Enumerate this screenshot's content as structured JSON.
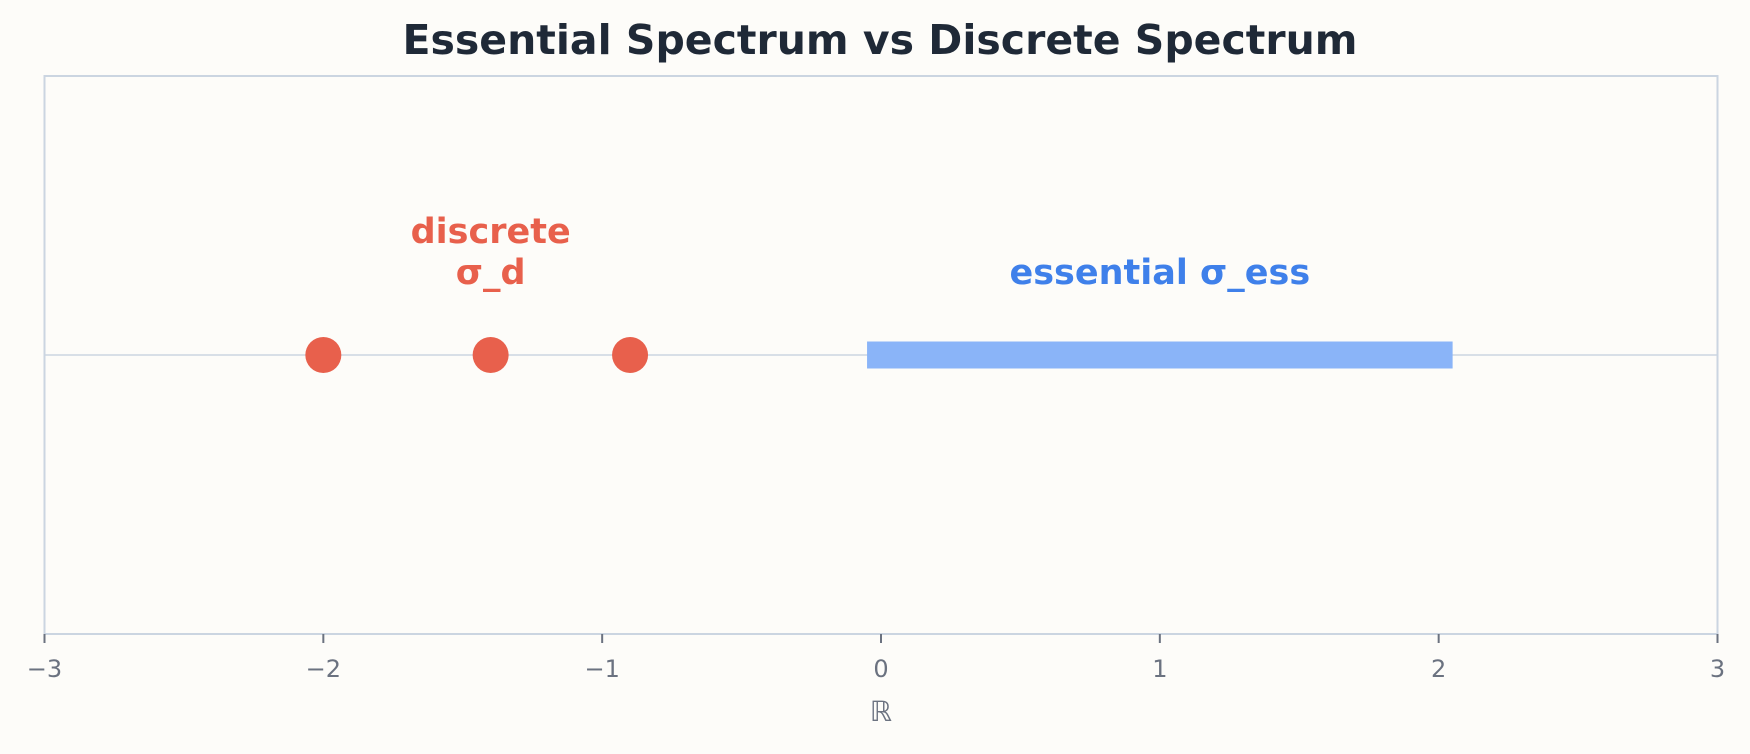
{
  "chart_data": {
    "type": "spectrum",
    "title": "Essential Spectrum vs Discrete Spectrum",
    "x_label": "ℝ",
    "discrete": {
      "label": [
        "discrete",
        "σ_d"
      ],
      "color": "#e8604c",
      "values": [
        -2,
        -1.4,
        -0.9
      ]
    },
    "essential": {
      "label": "essential σ_ess",
      "color": "#8ab4f8",
      "label_color": "#3f80ea",
      "values": [
        -0.05,
        2.05
      ]
    },
    "xlim": [
      -3,
      3
    ],
    "xticks": [
      {
        "value": -3,
        "label": "−3"
      },
      {
        "value": -2,
        "label": "−2"
      },
      {
        "value": -1,
        "label": "−1"
      },
      0,
      1,
      2,
      3
    ]
  }
}
